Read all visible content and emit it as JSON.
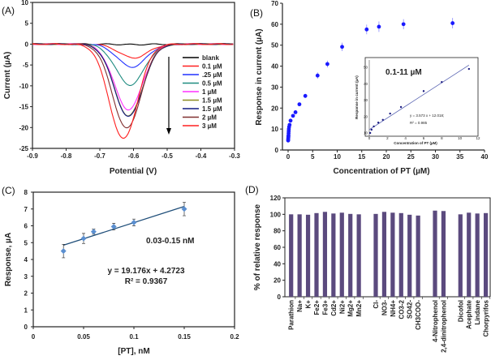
{
  "panels": {
    "a": "(A)",
    "b": "(B)",
    "c": "(C)",
    "d": "(D)"
  },
  "colors": {
    "b_points": "#1a1aff",
    "c_points": "#5b8fd0",
    "c_line": "#1f4e79",
    "bars": "#5b4a7e",
    "annot": "#1f2f7a"
  },
  "chart_data": [
    {
      "type": "line",
      "panel": "(A)",
      "xlabel": "Potential (V)",
      "ylabel": "Current (µA)",
      "xlim": [
        -0.9,
        -0.3
      ],
      "ylim": [
        -25,
        10
      ],
      "xticks": [
        "-0.9",
        "-0.8",
        "-0.7",
        "-0.6",
        "-0.5",
        "-0.4",
        "-0.3"
      ],
      "yticks": [
        "10",
        "5",
        "0",
        "-5",
        "-10",
        "-15",
        "-20",
        "-25"
      ],
      "legend_position": "right",
      "series": [
        {
          "name": "blank",
          "color": "#000000",
          "peak_potential": -0.6,
          "peak_current": -0.1
        },
        {
          "name": "0.1 µM",
          "color": "#ff2020",
          "peak_potential": -0.6,
          "peak_current": -3.3
        },
        {
          "name": ".25 µM",
          "color": "#2030ff",
          "peak_potential": -0.605,
          "peak_current": -5.5
        },
        {
          "name": "0.5 µM",
          "color": "#1f8c80",
          "peak_potential": -0.61,
          "peak_current": -9.8
        },
        {
          "name": "1 µM",
          "color": "#ff30ff",
          "peak_potential": -0.615,
          "peak_current": -15.7
        },
        {
          "name": "1.5 µM",
          "color": "#8c8c20",
          "peak_potential": -0.615,
          "peak_current": -17.2
        },
        {
          "name": "1.5 µM",
          "color": "#101880",
          "peak_potential": -0.615,
          "peak_current": -17.4
        },
        {
          "name": "2 µM",
          "color": "#803030",
          "peak_potential": -0.62,
          "peak_current": -20.2
        },
        {
          "name": "3 µM",
          "color": "#ff2020",
          "peak_potential": -0.63,
          "peak_current": -22.7
        }
      ]
    },
    {
      "type": "scatter",
      "panel": "(B)",
      "xlabel": "Concentration of PT (µM)",
      "ylabel": "Response in current (µA)",
      "xlim": [
        0,
        40
      ],
      "ylim": [
        0,
        70
      ],
      "xticks": [
        "0",
        "5",
        "10",
        "15",
        "20",
        "25",
        "30",
        "35",
        "40"
      ],
      "yticks": [
        "0",
        "10",
        "20",
        "30",
        "40",
        "50",
        "60",
        "70"
      ],
      "x": [
        0.01,
        0.02,
        0.03,
        0.05,
        0.06,
        0.08,
        0.1,
        0.12,
        0.15,
        0.2,
        0.3,
        0.5,
        1,
        1.5,
        2.3,
        3.5,
        6,
        8,
        11,
        16,
        18.5,
        23.5,
        33.5
      ],
      "y": [
        4.5,
        5,
        5.5,
        6,
        6.5,
        7,
        8,
        9,
        10,
        11,
        12,
        14,
        16.3,
        18,
        21.8,
        25.8,
        35.5,
        41,
        49.2,
        57.5,
        58.8,
        60,
        60.5
      ],
      "yerr": [
        0.3,
        0.3,
        0.3,
        0.3,
        0.3,
        0.3,
        0.3,
        0.3,
        0.3,
        0.3,
        0.4,
        0.5,
        0.6,
        0.6,
        0.8,
        1,
        1.5,
        1.6,
        2,
        2.3,
        2.5,
        2.4,
        2.5
      ],
      "inset": {
        "annotation": "0.1-11 µM",
        "xlabel": "Concentration of PT (µM)",
        "ylabel": "Response in current (µA)",
        "xlim": [
          0,
          12
        ],
        "ylim": [
          8,
          52
        ],
        "xticks": [
          "0",
          "2",
          "4",
          "6",
          "8",
          "10",
          "12"
        ],
        "yticks": [
          "10",
          "20",
          "30",
          "40",
          "50"
        ],
        "x": [
          0.1,
          0.25,
          0.5,
          1,
          1.5,
          2.3,
          3.5,
          6,
          8,
          11
        ],
        "y": [
          10,
          12,
          14,
          16.3,
          18,
          21.8,
          25.8,
          35.5,
          41,
          49
        ],
        "fit": {
          "slope": 3.573,
          "intercept": 12.018
        },
        "equation": "y = 3.573 x + 12.018;",
        "r2": "R² = 0.985"
      }
    },
    {
      "type": "scatter",
      "panel": "(C)",
      "xlabel": "[PT], nM",
      "ylabel": "Response, µA",
      "xlim": [
        0,
        0.2
      ],
      "ylim": [
        0,
        8
      ],
      "xticks": [
        "0",
        "0.05",
        "0.1",
        "0.15",
        "0.2"
      ],
      "yticks": [
        "0",
        "1",
        "2",
        "3",
        "4",
        "5",
        "6",
        "7",
        "8"
      ],
      "x": [
        0.03,
        0.05,
        0.06,
        0.08,
        0.1,
        0.15
      ],
      "y": [
        4.5,
        5.25,
        5.65,
        5.95,
        6.2,
        7.0
      ],
      "yerr": [
        0.4,
        0.3,
        0.15,
        0.2,
        0.2,
        0.4
      ],
      "fit": {
        "slope": 19.176,
        "intercept": 4.2723
      },
      "annotation": "0.03-0.15 nM",
      "equation": "y = 19.176x + 4.2723",
      "r2": "R² = 0.9367"
    },
    {
      "type": "bar",
      "panel": "(D)",
      "ylabel": "% of relative response",
      "ylim": [
        0,
        120
      ],
      "yticks": [
        "0",
        "20",
        "40",
        "60",
        "80",
        "100",
        "120"
      ],
      "categories": [
        "Parathion",
        "Na+",
        "K+",
        "Fe2+",
        "Fe3+",
        "Cd2+",
        "Ni2+",
        "Mg2+",
        "Mn2+",
        "Cl-",
        "NO3-",
        "NH4+",
        "CO3-2",
        "SO42-",
        "CH3COO-",
        "4-Nitrophenol",
        "2,4-dinitrophenol",
        "Dicofol",
        "Acephate",
        "Lindane",
        "Chorpyrifos"
      ],
      "groups": [
        9,
        6,
        2,
        4
      ],
      "values": [
        100,
        100,
        99.5,
        101.5,
        103,
        101,
        102,
        100.5,
        100,
        100.5,
        103,
        102,
        101.5,
        99.5,
        98.5,
        104.5,
        104,
        100,
        102,
        101,
        101.5
      ]
    }
  ]
}
